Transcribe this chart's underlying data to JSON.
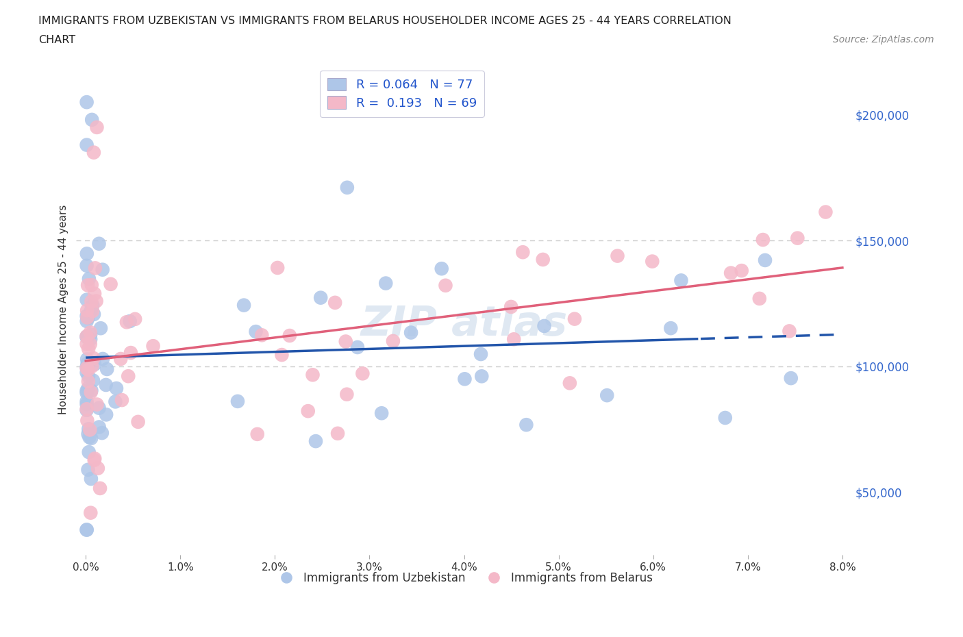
{
  "title_line1": "IMMIGRANTS FROM UZBEKISTAN VS IMMIGRANTS FROM BELARUS HOUSEHOLDER INCOME AGES 25 - 44 YEARS CORRELATION",
  "title_line2": "CHART",
  "source_text": "Source: ZipAtlas.com",
  "ylabel": "Householder Income Ages 25 - 44 years",
  "xmin": 0.0,
  "xmax": 0.08,
  "ymin": 25000,
  "ymax": 220000,
  "yticks": [
    50000,
    100000,
    150000,
    200000
  ],
  "ytick_labels": [
    "$50,000",
    "$100,000",
    "$150,000",
    "$200,000"
  ],
  "xticks": [
    0.0,
    0.01,
    0.02,
    0.03,
    0.04,
    0.05,
    0.06,
    0.07,
    0.08
  ],
  "xtick_labels": [
    "0.0%",
    "1.0%",
    "2.0%",
    "3.0%",
    "4.0%",
    "5.0%",
    "6.0%",
    "7.0%",
    "8.0%"
  ],
  "uzb_color": "#aec6e8",
  "bel_color": "#f4b8c8",
  "uzb_line_color": "#2255aa",
  "bel_line_color": "#e0607a",
  "uzb_R": 0.064,
  "uzb_N": 77,
  "bel_R": 0.193,
  "bel_N": 69,
  "legend_uzb": "Immigrants from Uzbekistan",
  "legend_bel": "Immigrants from Belarus",
  "grid_color": "#cccccc",
  "uzb_intercept": 100000,
  "uzb_slope": 250000,
  "bel_intercept": 97000,
  "bel_slope": 680000,
  "trend_split": 0.065
}
